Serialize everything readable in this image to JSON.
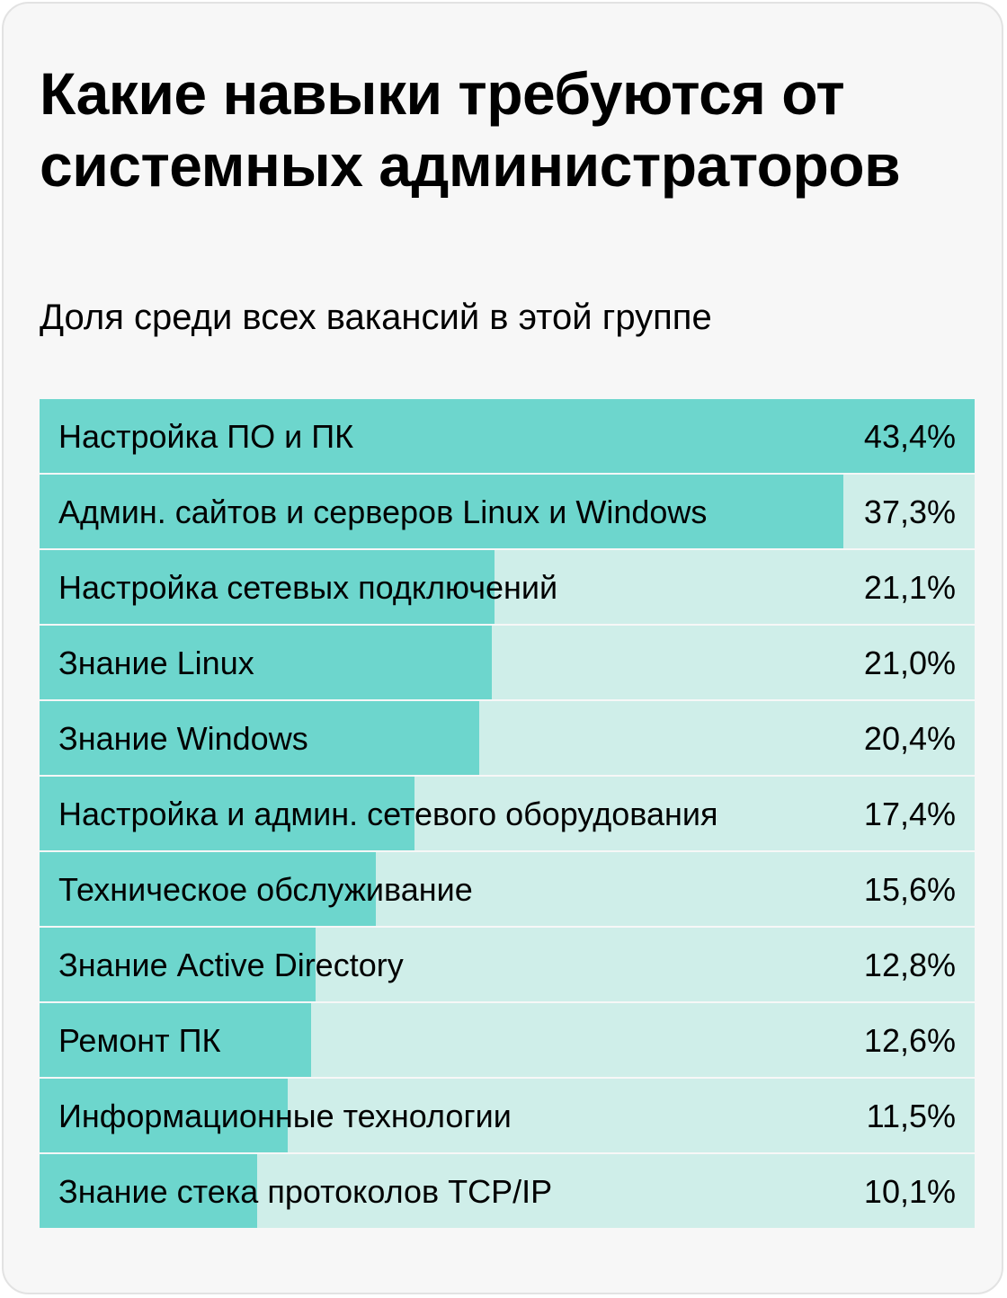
{
  "chart_data": {
    "type": "bar",
    "orientation": "horizontal",
    "title": "Какие навыки требуются от системных администраторов",
    "subtitle": "Доля среди всех вакансий в этой группе",
    "categories": [
      "Настройка ПО и ПК",
      "Админ. сайтов и серверов Linux и Windows",
      "Настройка сетевых подключений",
      "Знание Linux",
      "Знание Windows",
      "Настройка и админ. сетевого оборудования",
      "Техническое обслуживание",
      "Знание Active Directory",
      "Ремонт ПК",
      "Информационные технологии",
      "Знание стека протоколов TCP/IP"
    ],
    "values": [
      43.4,
      37.3,
      21.1,
      21.0,
      20.4,
      17.4,
      15.6,
      12.8,
      12.6,
      11.5,
      10.1
    ],
    "value_labels": [
      "43,4%",
      "37,3%",
      "21,1%",
      "21,0%",
      "20,4%",
      "17,4%",
      "15,6%",
      "12,8%",
      "12,6%",
      "11,5%",
      "10,1%"
    ],
    "xlim": [
      0,
      43.4
    ],
    "grid": false,
    "colors": {
      "bar": "#6dd6cd",
      "track": "#cfeee9",
      "card_background": "#f7f7f7",
      "card_border": "#e2e2e2",
      "text": "#000000"
    }
  }
}
